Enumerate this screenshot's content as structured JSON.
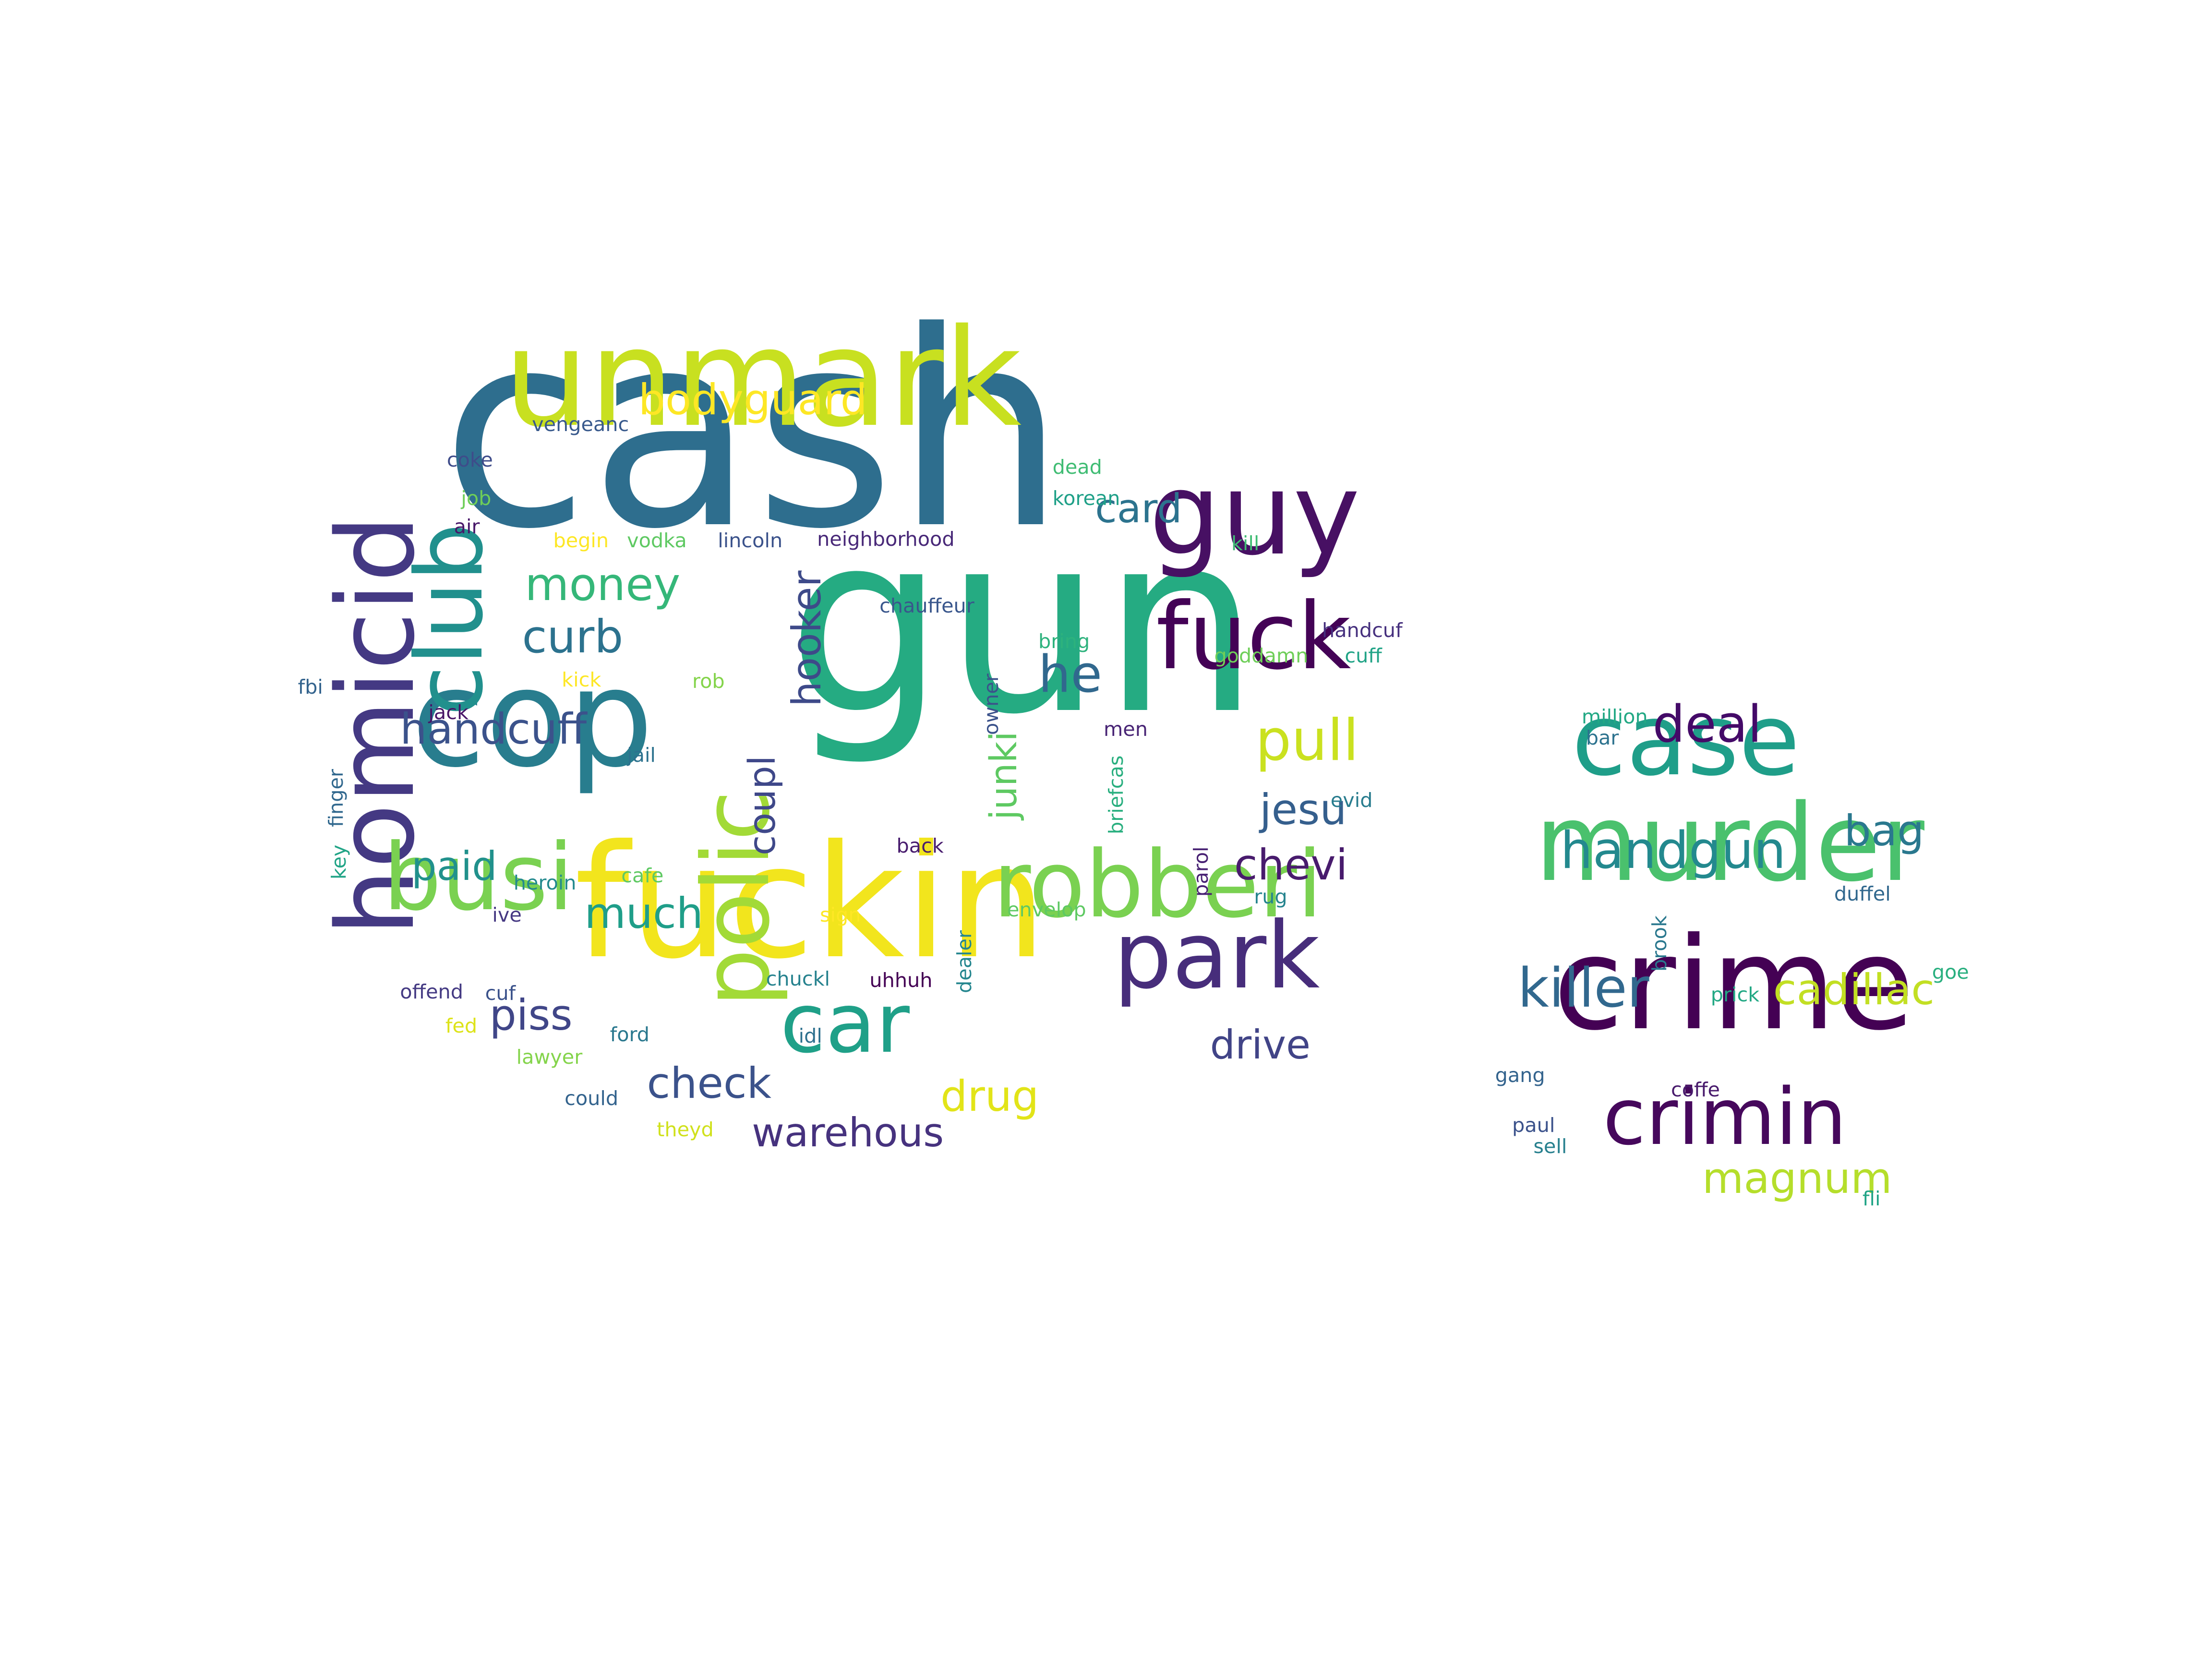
{
  "colors": {
    "background": "#ffffff",
    "palette": "viridis"
  },
  "words": [
    {
      "text": "cash",
      "color": "#2e6e8e",
      "rotated": false
    },
    {
      "text": "gun",
      "color": "#25ab82",
      "rotated": false
    },
    {
      "text": "unmark",
      "color": "#c8e020",
      "rotated": false
    },
    {
      "text": "fuckin",
      "color": "#f2e51d",
      "rotated": false
    },
    {
      "text": "cop",
      "color": "#287d8e",
      "rotated": false
    },
    {
      "text": "guy",
      "color": "#471063",
      "rotated": false
    },
    {
      "text": "fuck",
      "color": "#440256",
      "rotated": false
    },
    {
      "text": "homicid",
      "color": "#443983",
      "rotated": true
    },
    {
      "text": "club",
      "color": "#21908d",
      "rotated": true
    },
    {
      "text": "busi",
      "color": "#7ad151",
      "rotated": false
    },
    {
      "text": "robberi",
      "color": "#7ad151",
      "rotated": false
    },
    {
      "text": "park",
      "color": "#472d7b",
      "rotated": false
    },
    {
      "text": "polic",
      "color": "#a2da37",
      "rotated": true
    },
    {
      "text": "car",
      "color": "#1fa088",
      "rotated": false
    },
    {
      "text": "bodyguard",
      "color": "#fde725",
      "rotated": false
    },
    {
      "text": "money",
      "color": "#35b779",
      "rotated": false
    },
    {
      "text": "curb",
      "color": "#2c728e",
      "rotated": false
    },
    {
      "text": "handcuff",
      "color": "#3b528b",
      "rotated": false
    },
    {
      "text": "paid",
      "color": "#21918c",
      "rotated": false
    },
    {
      "text": "much",
      "color": "#1f9e89",
      "rotated": false
    },
    {
      "text": "piss",
      "color": "#404688",
      "rotated": false
    },
    {
      "text": "check",
      "color": "#3b528b",
      "rotated": false
    },
    {
      "text": "warehous",
      "color": "#46327e",
      "rotated": false
    },
    {
      "text": "drug",
      "color": "#e2e418",
      "rotated": false
    },
    {
      "text": "drive",
      "color": "#414487",
      "rotated": false
    },
    {
      "text": "chevi",
      "color": "#481b6d",
      "rotated": false
    },
    {
      "text": "jesu",
      "color": "#355f8d",
      "rotated": false
    },
    {
      "text": "pull",
      "color": "#cae11f",
      "rotated": false
    },
    {
      "text": "he",
      "color": "#31688e",
      "rotated": false
    },
    {
      "text": "card",
      "color": "#2c738e",
      "rotated": false
    },
    {
      "text": "hooker",
      "color": "#3e4a89",
      "rotated": true
    },
    {
      "text": "coupl",
      "color": "#3f4889",
      "rotated": true
    },
    {
      "text": "junki",
      "color": "#5ec962",
      "rotated": true
    },
    {
      "text": "case",
      "color": "#1f9e89",
      "rotated": false
    },
    {
      "text": "murder",
      "color": "#4ac16d",
      "rotated": false
    },
    {
      "text": "crime",
      "color": "#440154",
      "rotated": false
    },
    {
      "text": "crimin",
      "color": "#46085c",
      "rotated": false
    },
    {
      "text": "killer",
      "color": "#31688e",
      "rotated": false
    },
    {
      "text": "handgun",
      "color": "#23898e",
      "rotated": false
    },
    {
      "text": "deal",
      "color": "#440a68",
      "rotated": false
    },
    {
      "text": "bag",
      "color": "#2a788e",
      "rotated": false
    },
    {
      "text": "cadillac",
      "color": "#c2df23",
      "rotated": false
    },
    {
      "text": "magnum",
      "color": "#b5de2b",
      "rotated": false
    },
    {
      "text": "vengeanc",
      "color": "#38598c",
      "rotated": false
    },
    {
      "text": "coke",
      "color": "#3e4c8a",
      "rotated": false
    },
    {
      "text": "job",
      "color": "#6ece58",
      "rotated": false
    },
    {
      "text": "air",
      "color": "#481769",
      "rotated": false
    },
    {
      "text": "begin",
      "color": "#fde725",
      "rotated": false
    },
    {
      "text": "vodka",
      "color": "#5ec962",
      "rotated": false
    },
    {
      "text": "lincoln",
      "color": "#3b528b",
      "rotated": false
    },
    {
      "text": "neighborhood",
      "color": "#482878",
      "rotated": false
    },
    {
      "text": "dead",
      "color": "#3fbc73",
      "rotated": false
    },
    {
      "text": "korean",
      "color": "#1fa088",
      "rotated": false
    },
    {
      "text": "kill",
      "color": "#3fbc73",
      "rotated": false
    },
    {
      "text": "chauffeur",
      "color": "#39568c",
      "rotated": false
    },
    {
      "text": "bring",
      "color": "#2db27d",
      "rotated": false
    },
    {
      "text": "goddamn",
      "color": "#6ece58",
      "rotated": false
    },
    {
      "text": "handcuf",
      "color": "#46307e",
      "rotated": false
    },
    {
      "text": "cuff",
      "color": "#20a386",
      "rotated": false
    },
    {
      "text": "fbi",
      "color": "#33638d",
      "rotated": false
    },
    {
      "text": "kick",
      "color": "#fde725",
      "rotated": false
    },
    {
      "text": "rob",
      "color": "#84d44b",
      "rotated": false
    },
    {
      "text": "owner",
      "color": "#3b528b",
      "rotated": true
    },
    {
      "text": "jack",
      "color": "#481467",
      "rotated": false
    },
    {
      "text": "jail",
      "color": "#2c728e",
      "rotated": false
    },
    {
      "text": "men",
      "color": "#482475",
      "rotated": false
    },
    {
      "text": "briefcas",
      "color": "#29af7f",
      "rotated": true
    },
    {
      "text": "finger",
      "color": "#31688e",
      "rotated": true
    },
    {
      "text": "key",
      "color": "#20a486",
      "rotated": true
    },
    {
      "text": "evid",
      "color": "#287c8e",
      "rotated": false
    },
    {
      "text": "back",
      "color": "#481c6e",
      "rotated": false
    },
    {
      "text": "parol",
      "color": "#482173",
      "rotated": true
    },
    {
      "text": "rug",
      "color": "#25848e",
      "rotated": false
    },
    {
      "text": "heroin",
      "color": "#23898e",
      "rotated": false
    },
    {
      "text": "cafe",
      "color": "#5ec962",
      "rotated": false
    },
    {
      "text": "ive",
      "color": "#453882",
      "rotated": false
    },
    {
      "text": "sign",
      "color": "#fde725",
      "rotated": false
    },
    {
      "text": "dealer",
      "color": "#24868e",
      "rotated": true
    },
    {
      "text": "envelop",
      "color": "#5ec962",
      "rotated": false
    },
    {
      "text": "chuckl",
      "color": "#26828e",
      "rotated": false
    },
    {
      "text": "uhhuh",
      "color": "#440154",
      "rotated": false
    },
    {
      "text": "offend",
      "color": "#443a83",
      "rotated": false
    },
    {
      "text": "cuf",
      "color": "#3b528b",
      "rotated": false
    },
    {
      "text": "fed",
      "color": "#dde318",
      "rotated": false
    },
    {
      "text": "ford",
      "color": "#2a788e",
      "rotated": false
    },
    {
      "text": "idl",
      "color": "#2d708e",
      "rotated": false
    },
    {
      "text": "lawyer",
      "color": "#84d44b",
      "rotated": false
    },
    {
      "text": "could",
      "color": "#33638d",
      "rotated": false
    },
    {
      "text": "theyd",
      "color": "#d0e11c",
      "rotated": false
    },
    {
      "text": "million",
      "color": "#22a884",
      "rotated": false
    },
    {
      "text": "bar",
      "color": "#2c728e",
      "rotated": false
    },
    {
      "text": "duffel",
      "color": "#31688e",
      "rotated": false
    },
    {
      "text": "brook",
      "color": "#2a788e",
      "rotated": true
    },
    {
      "text": "goe",
      "color": "#29af7f",
      "rotated": false
    },
    {
      "text": "prick",
      "color": "#22a884",
      "rotated": false
    },
    {
      "text": "gang",
      "color": "#33638d",
      "rotated": false
    },
    {
      "text": "coffe",
      "color": "#481a6c",
      "rotated": false
    },
    {
      "text": "paul",
      "color": "#3b528b",
      "rotated": false
    },
    {
      "text": "sell",
      "color": "#27808e",
      "rotated": false
    },
    {
      "text": "fli",
      "color": "#20a386",
      "rotated": false
    }
  ]
}
